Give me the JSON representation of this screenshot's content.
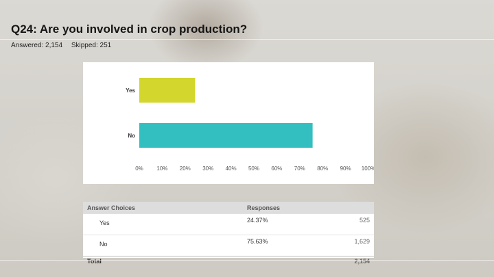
{
  "question": {
    "title": "Q24: Are you involved in crop production?",
    "answered": "Answered: 2,154",
    "skipped": "Skipped: 251"
  },
  "chart_data": {
    "type": "bar",
    "orientation": "horizontal",
    "categories": [
      "Yes",
      "No"
    ],
    "values": [
      24.37,
      75.63
    ],
    "value_unit": "percent",
    "xlim": [
      0,
      100
    ],
    "xticks": [
      "0%",
      "10%",
      "20%",
      "30%",
      "40%",
      "50%",
      "60%",
      "70%",
      "80%",
      "90%",
      "100%"
    ],
    "colors": [
      "#d3d62c",
      "#33bfbf"
    ],
    "grid": false
  },
  "table": {
    "headers": {
      "choice": "Answer Choices",
      "responses": "Responses"
    },
    "rows": [
      {
        "choice": "Yes",
        "percent": "24.37%",
        "count": "525"
      },
      {
        "choice": "No",
        "percent": "75.63%",
        "count": "1,629"
      }
    ],
    "total_label": "Total",
    "total_count": "2,154"
  }
}
